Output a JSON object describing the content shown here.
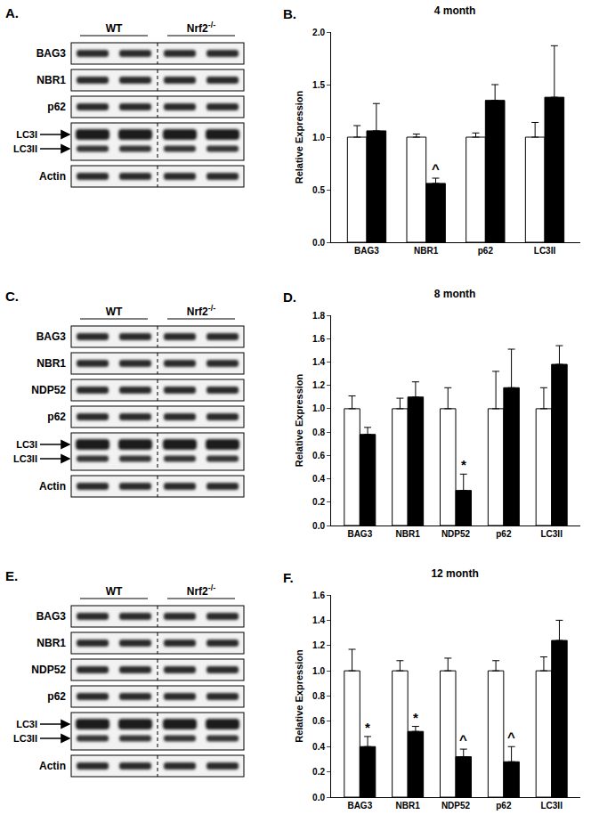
{
  "panels": [
    {
      "label": "A.",
      "groups": [
        {
          "text": "WT"
        },
        {
          "text": "Nrf2",
          "sup": "-/-"
        }
      ],
      "rows": [
        {
          "labels": [
            "BAG3"
          ]
        },
        {
          "labels": [
            "NBR1"
          ]
        },
        {
          "labels": [
            "p62"
          ]
        },
        {
          "labels": [
            "LC3I",
            "LC3II"
          ]
        },
        {
          "labels": [
            "Actin"
          ]
        }
      ]
    },
    {
      "label": "C.",
      "groups": [
        {
          "text": "WT"
        },
        {
          "text": "Nrf2",
          "sup": "-/-"
        }
      ],
      "rows": [
        {
          "labels": [
            "BAG3"
          ]
        },
        {
          "labels": [
            "NBR1"
          ]
        },
        {
          "labels": [
            "NDP52"
          ]
        },
        {
          "labels": [
            "p62"
          ]
        },
        {
          "labels": [
            "LC3I",
            "LC3II"
          ]
        },
        {
          "labels": [
            "Actin"
          ]
        }
      ]
    },
    {
      "label": "E.",
      "groups": [
        {
          "text": "WT"
        },
        {
          "text": "Nrf2",
          "sup": "-/-"
        }
      ],
      "rows": [
        {
          "labels": [
            "BAG3"
          ]
        },
        {
          "labels": [
            "NBR1"
          ]
        },
        {
          "labels": [
            "NDP52"
          ]
        },
        {
          "labels": [
            "p62"
          ]
        },
        {
          "labels": [
            "LC3I",
            "LC3II"
          ]
        },
        {
          "labels": [
            "Actin"
          ]
        }
      ]
    }
  ],
  "chart_data": [
    {
      "type": "bar",
      "panel": "B.",
      "title": "4 month",
      "y_label": "Relative Expression",
      "categories": [
        "BAG3",
        "NBR1",
        "p62",
        "LC3II"
      ],
      "series": [
        {
          "name": "WT",
          "color": "#ffffff",
          "values": [
            1.0,
            1.0,
            1.0,
            1.0
          ],
          "error": [
            0.11,
            0.03,
            0.04,
            0.14
          ],
          "annotations": [
            null,
            null,
            null,
            null
          ]
        },
        {
          "name": "Nrf2-/-",
          "color": "#000000",
          "values": [
            1.06,
            0.56,
            1.35,
            1.38
          ],
          "error": [
            0.26,
            0.05,
            0.15,
            0.49
          ],
          "annotations": [
            null,
            "^",
            null,
            null
          ]
        }
      ],
      "ylim": [
        0,
        2.0
      ],
      "yticks": [
        {
          "value": 0,
          "label": "0.0"
        },
        {
          "value": 0.5,
          "label": "0.5"
        },
        {
          "value": 1,
          "label": "1.0"
        },
        {
          "value": 1.5,
          "label": "1.5"
        },
        {
          "value": 2,
          "label": "2.0"
        }
      ],
      "legend": "none"
    },
    {
      "type": "bar",
      "panel": "D.",
      "title": "8 month",
      "y_label": "Relative Expression",
      "categories": [
        "BAG3",
        "NBR1",
        "NDP52",
        "p62",
        "LC3II"
      ],
      "series": [
        {
          "name": "WT",
          "color": "#ffffff",
          "values": [
            1.0,
            1.0,
            1.0,
            1.0,
            1.0
          ],
          "error": [
            0.11,
            0.09,
            0.18,
            0.32,
            0.18
          ],
          "annotations": [
            null,
            null,
            null,
            null,
            null
          ]
        },
        {
          "name": "Nrf2-/-",
          "color": "#000000",
          "values": [
            0.78,
            1.1,
            0.3,
            1.18,
            1.38
          ],
          "error": [
            0.06,
            0.13,
            0.14,
            0.33,
            0.16
          ],
          "annotations": [
            null,
            null,
            "*",
            null,
            null
          ]
        }
      ],
      "ylim": [
        0,
        1.8
      ],
      "yticks": [
        {
          "value": 0,
          "label": "0.0"
        },
        {
          "value": 0.2,
          "label": "0.2"
        },
        {
          "value": 0.4,
          "label": "0.4"
        },
        {
          "value": 0.6,
          "label": "0.6"
        },
        {
          "value": 0.8,
          "label": "0.8"
        },
        {
          "value": 1,
          "label": "1.0"
        },
        {
          "value": 1.2,
          "label": "1.2"
        },
        {
          "value": 1.4,
          "label": "1.4"
        },
        {
          "value": 1.6,
          "label": "1.6"
        },
        {
          "value": 1.8,
          "label": "1.8"
        }
      ],
      "legend": "none"
    },
    {
      "type": "bar",
      "panel": "F.",
      "title": "12 month",
      "y_label": "Relative Expression",
      "categories": [
        "BAG3",
        "NBR1",
        "NDP52",
        "p62",
        "LC3II"
      ],
      "series": [
        {
          "name": "WT",
          "color": "#ffffff",
          "values": [
            1.0,
            1.0,
            1.0,
            1.0,
            1.0
          ],
          "error": [
            0.17,
            0.08,
            0.1,
            0.08,
            0.11
          ],
          "annotations": [
            null,
            null,
            null,
            null,
            null
          ]
        },
        {
          "name": "Nrf2-/-",
          "color": "#000000",
          "values": [
            0.4,
            0.52,
            0.32,
            0.28,
            1.24
          ],
          "error": [
            0.08,
            0.04,
            0.06,
            0.12,
            0.16
          ],
          "annotations": [
            "*",
            "*",
            "^",
            "^",
            null
          ]
        }
      ],
      "ylim": [
        0,
        1.6
      ],
      "yticks": [
        {
          "value": 0,
          "label": "0.0"
        },
        {
          "value": 0.2,
          "label": "0.2"
        },
        {
          "value": 0.4,
          "label": "0.4"
        },
        {
          "value": 0.6,
          "label": "0.6"
        },
        {
          "value": 0.8,
          "label": "0.8"
        },
        {
          "value": 1,
          "label": "1.0"
        },
        {
          "value": 1.2,
          "label": "1.2"
        },
        {
          "value": 1.4,
          "label": "1.4"
        },
        {
          "value": 1.6,
          "label": "1.6"
        }
      ],
      "legend": "none"
    }
  ]
}
